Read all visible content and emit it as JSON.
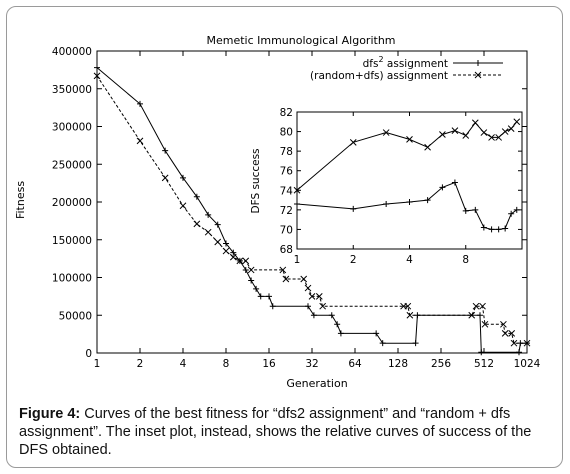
{
  "chart_data": {
    "type": "line",
    "title": "Memetic Immunological Algorithm",
    "xlabel": "Generation",
    "ylabel": "Fitness",
    "xscale": "log2",
    "xlim": [
      1,
      1024
    ],
    "ylim": [
      0,
      400000
    ],
    "x_ticks": [
      "1",
      "2",
      "4",
      "8",
      "16",
      "32",
      "64",
      "128",
      "256",
      "512",
      "1024"
    ],
    "y_ticks": [
      "0",
      "50000",
      "100000",
      "150000",
      "200000",
      "250000",
      "300000",
      "350000",
      "400000"
    ],
    "legend_position": "top-right",
    "series": [
      {
        "name": "dfs",
        "name_sup": "2",
        "name_suffix": " assignment",
        "style": "solid",
        "marker": "plus",
        "points": [
          [
            1,
            378000
          ],
          [
            2,
            330000
          ],
          [
            3,
            268000
          ],
          [
            4,
            232000
          ],
          [
            5,
            207000
          ],
          [
            6,
            183000
          ],
          [
            7,
            170000
          ],
          [
            8,
            145000
          ],
          [
            9,
            133000
          ],
          [
            10,
            122000
          ],
          [
            11,
            110000
          ],
          [
            12,
            96000
          ],
          [
            13,
            85000
          ],
          [
            14,
            75000
          ],
          [
            16,
            75000
          ],
          [
            17,
            62000
          ],
          [
            30,
            62000
          ],
          [
            33,
            50000
          ],
          [
            44,
            50000
          ],
          [
            48,
            38000
          ],
          [
            51,
            26000
          ],
          [
            90,
            26000
          ],
          [
            100,
            13000
          ],
          [
            170,
            13000
          ],
          [
            175,
            50000
          ],
          [
            480,
            50000
          ],
          [
            490,
            1000
          ],
          [
            900,
            1000
          ],
          [
            920,
            13000
          ],
          [
            1024,
            13000
          ]
        ]
      },
      {
        "name": "(random+dfs) assignment",
        "style": "dashed",
        "marker": "cross",
        "points": [
          [
            1,
            367000
          ],
          [
            2,
            281000
          ],
          [
            3,
            232000
          ],
          [
            4,
            195000
          ],
          [
            5,
            171000
          ],
          [
            6,
            160000
          ],
          [
            7,
            147000
          ],
          [
            8,
            135000
          ],
          [
            9,
            127000
          ],
          [
            10,
            122000
          ],
          [
            11,
            122000
          ],
          [
            12,
            110000
          ],
          [
            20,
            110000
          ],
          [
            21,
            98000
          ],
          [
            28,
            98000
          ],
          [
            30,
            86000
          ],
          [
            32,
            75000
          ],
          [
            36,
            75000
          ],
          [
            38,
            62000
          ],
          [
            140,
            62000
          ],
          [
            150,
            62000
          ],
          [
            155,
            50000
          ],
          [
            420,
            50000
          ],
          [
            450,
            62000
          ],
          [
            500,
            62000
          ],
          [
            520,
            38000
          ],
          [
            700,
            38000
          ],
          [
            720,
            26000
          ],
          [
            800,
            26000
          ],
          [
            830,
            13000
          ],
          [
            1024,
            13000
          ]
        ]
      }
    ],
    "inset": {
      "ylabel": "DFS success",
      "xscale": "log2",
      "xlim": [
        1,
        16
      ],
      "ylim": [
        68,
        82
      ],
      "x_ticks": [
        "1",
        "2",
        "4",
        "8"
      ],
      "y_ticks": [
        "68",
        "70",
        "72",
        "74",
        "76",
        "78",
        "80",
        "82"
      ],
      "series": [
        {
          "name": "(random+dfs) assignment",
          "style": "solid",
          "marker": "cross",
          "points": [
            [
              1,
              74
            ],
            [
              2,
              78.9
            ],
            [
              3,
              79.9
            ],
            [
              4,
              79.2
            ],
            [
              5,
              78.4
            ],
            [
              6,
              79.7
            ],
            [
              7,
              80.1
            ],
            [
              8,
              79.6
            ],
            [
              9,
              80.9
            ],
            [
              10,
              79.9
            ],
            [
              11,
              79.4
            ],
            [
              12,
              79.4
            ],
            [
              13,
              80.0
            ],
            [
              14,
              80.3
            ],
            [
              15,
              81.0
            ]
          ]
        },
        {
          "name": "dfs2 assignment",
          "style": "solid",
          "marker": "plus",
          "points": [
            [
              1,
              72.6
            ],
            [
              2,
              72.1
            ],
            [
              3,
              72.6
            ],
            [
              4,
              72.8
            ],
            [
              5,
              73.0
            ],
            [
              6,
              74.3
            ],
            [
              7,
              74.8
            ],
            [
              8,
              71.9
            ],
            [
              9,
              72.0
            ],
            [
              10,
              70.2
            ],
            [
              11,
              70.0
            ],
            [
              12,
              70.0
            ],
            [
              13,
              70.1
            ],
            [
              14,
              71.6
            ],
            [
              15,
              72.0
            ]
          ]
        }
      ]
    }
  },
  "caption": {
    "label": "Figure 4:",
    "text": " Curves of the best fitness for “dfs2 assignment” and “random + dfs assignment”. The inset plot, instead, shows the relative curves of success of the DFS obtained."
  }
}
